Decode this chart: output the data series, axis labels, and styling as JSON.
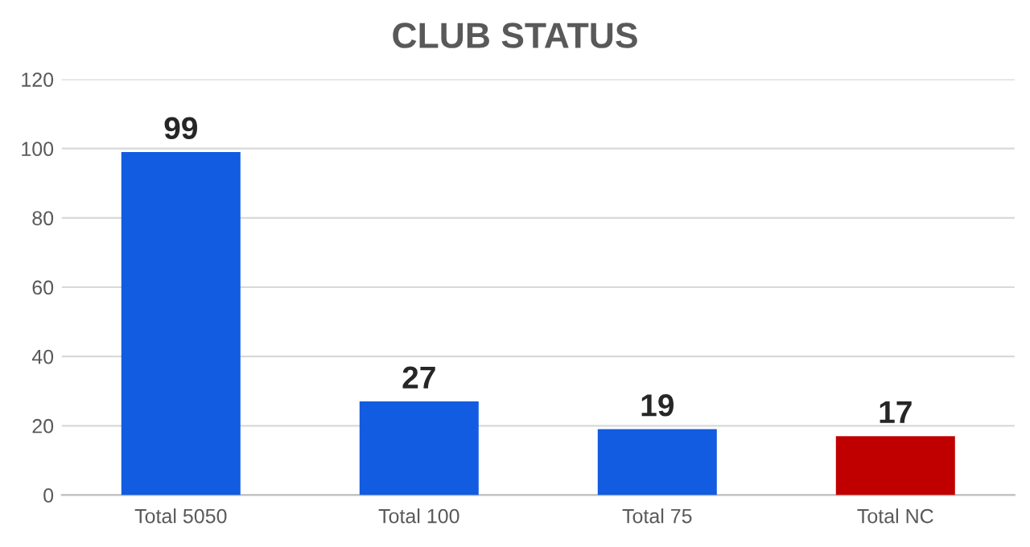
{
  "chart_data": {
    "type": "bar",
    "title": "CLUB STATUS",
    "categories": [
      "Total 5050",
      "Total 100",
      "Total 75",
      "Total NC"
    ],
    "values": [
      99,
      27,
      19,
      17
    ],
    "colors": [
      "#115ce0",
      "#115ce0",
      "#115ce0",
      "#c00000"
    ],
    "ylim": [
      0,
      120
    ],
    "yticks": [
      0,
      20,
      40,
      60,
      80,
      100,
      120
    ],
    "grid": "y",
    "data_labels": true
  }
}
